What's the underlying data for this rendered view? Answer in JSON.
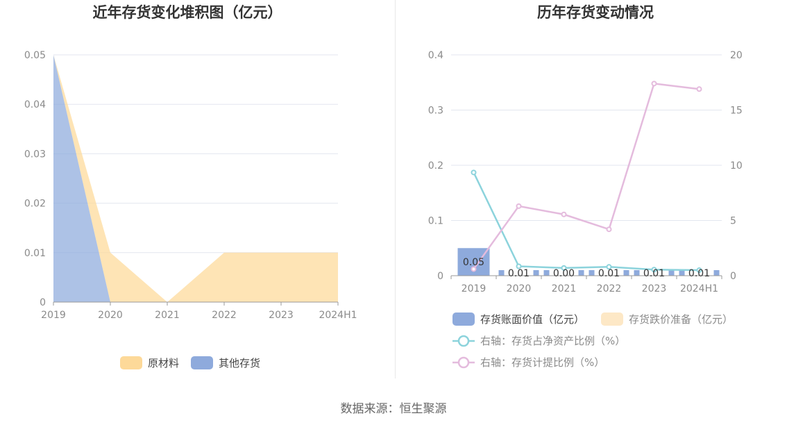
{
  "source_text": "数据来源：恒生聚源",
  "chart_data": [
    {
      "type": "area",
      "title": "近年存货变化堆积图（亿元）",
      "categories": [
        "2019",
        "2020",
        "2021",
        "2022",
        "2023",
        "2024H1"
      ],
      "y_ticks": [
        "0",
        "0.01",
        "0.02",
        "0.03",
        "0.04",
        "0.05"
      ],
      "ylim": [
        0,
        0.05
      ],
      "stacked": true,
      "grid": true,
      "legend_position": "bottom",
      "series": [
        {
          "name": "其他存货",
          "color": "#8eaadc",
          "values": [
            0.05,
            0,
            0,
            0,
            0,
            0
          ]
        },
        {
          "name": "原材料",
          "color": "#fdd999",
          "values": [
            0,
            0.01,
            0,
            0.01,
            0.01,
            0.01
          ]
        }
      ]
    },
    {
      "type": "bar",
      "title": "历年存货变动情况",
      "categories": [
        "2019",
        "2020",
        "2021",
        "2022",
        "2023",
        "2024H1"
      ],
      "y_left_ticks": [
        "0",
        "0.1",
        "0.2",
        "0.3",
        "0.4"
      ],
      "y_right_ticks": [
        "0",
        "5",
        "10",
        "15",
        "20"
      ],
      "ylim_left": [
        0,
        0.4
      ],
      "ylim_right": [
        0,
        20
      ],
      "grid": true,
      "legend_position": "bottom",
      "bar_series": [
        {
          "name": "存货账面价值（亿元）",
          "color": "#8eaadc",
          "values": [
            0.05,
            0.01,
            0.0,
            0.01,
            0.01,
            0.01
          ],
          "labels": [
            "0.05",
            "0.01",
            "0.00",
            "0.01",
            "0.01",
            "0.01"
          ]
        },
        {
          "name": "存货跌价准备（亿元）",
          "color": "#fde8c6",
          "values": [
            0,
            0,
            0,
            0,
            0,
            0
          ]
        }
      ],
      "line_series": [
        {
          "name": "右轴：存货占净资产比例（%）",
          "color": "#8cd3dc",
          "values": [
            9.35,
            0.85,
            0.7,
            0.8,
            0.55,
            0.5
          ]
        },
        {
          "name": "右轴：存货计提比例（%）",
          "color": "#e4bbdd",
          "values": [
            0.6,
            6.3,
            5.55,
            4.2,
            17.4,
            16.9
          ]
        }
      ]
    }
  ]
}
